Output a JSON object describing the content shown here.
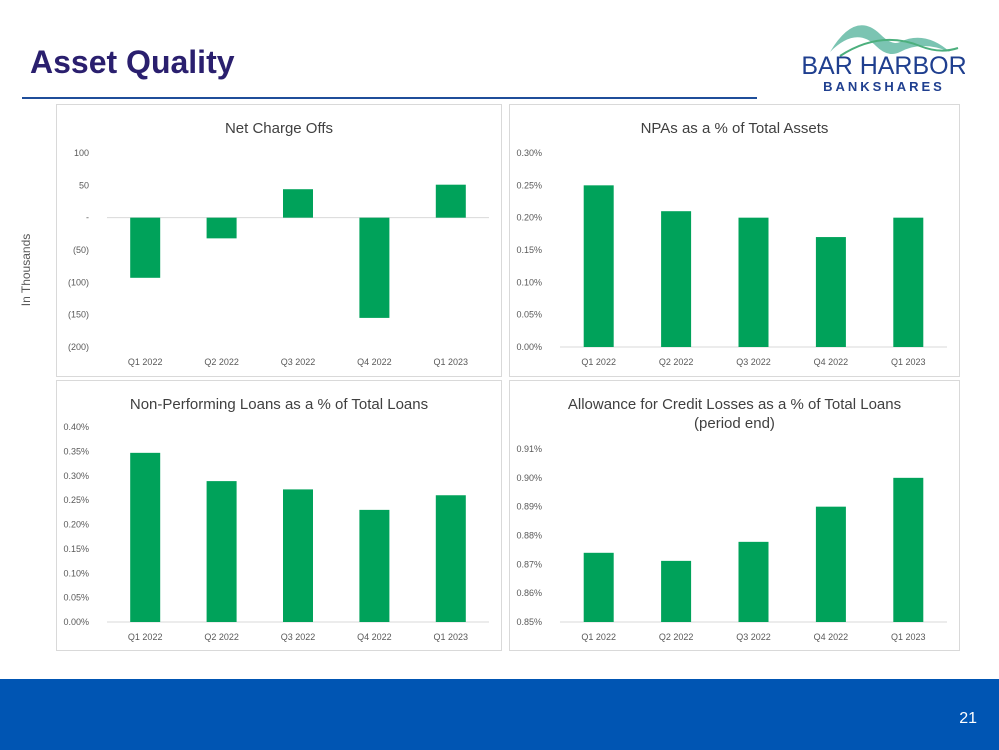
{
  "slide": {
    "title": "Asset Quality",
    "page_number": "21",
    "side_label": "In Thousands"
  },
  "logo": {
    "line1": "BAR HARBOR",
    "line2": "BANKSHARES"
  },
  "colors": {
    "bar": "#00a25a",
    "title": "#2a1f6e",
    "rule": "#1f4e9a",
    "footer": "#0055b3"
  },
  "chart_data": [
    {
      "type": "bar",
      "title": "Net Charge Offs",
      "categories": [
        "Q1 2022",
        "Q2 2022",
        "Q3 2022",
        "Q4 2022",
        "Q1 2023"
      ],
      "values": [
        -93,
        -32,
        44,
        -155,
        51
      ],
      "ylim": [
        -200,
        100
      ],
      "yticks": [
        -200,
        -150,
        -100,
        -50,
        0,
        50,
        100
      ],
      "ytick_labels": [
        "(200)",
        "(150)",
        "(100)",
        "(50)",
        "-",
        "50",
        "100"
      ],
      "ylabel": "In Thousands"
    },
    {
      "type": "bar",
      "title": "NPAs as a % of Total Assets",
      "categories": [
        "Q1 2022",
        "Q2 2022",
        "Q3 2022",
        "Q4 2022",
        "Q1 2023"
      ],
      "values": [
        0.25,
        0.21,
        0.2,
        0.17,
        0.2
      ],
      "ylim": [
        0,
        0.3
      ],
      "yticks": [
        0,
        0.05,
        0.1,
        0.15,
        0.2,
        0.25,
        0.3
      ],
      "ytick_labels": [
        "0.00%",
        "0.05%",
        "0.10%",
        "0.15%",
        "0.20%",
        "0.25%",
        "0.30%"
      ]
    },
    {
      "type": "bar",
      "title": "Non-Performing Loans as a % of Total Loans",
      "categories": [
        "Q1 2022",
        "Q2 2022",
        "Q3 2022",
        "Q4 2022",
        "Q1 2023"
      ],
      "values": [
        0.347,
        0.289,
        0.272,
        0.23,
        0.26
      ],
      "ylim": [
        0,
        0.4
      ],
      "yticks": [
        0,
        0.05,
        0.1,
        0.15,
        0.2,
        0.25,
        0.3,
        0.35,
        0.4
      ],
      "ytick_labels": [
        "0.00%",
        "0.05%",
        "0.10%",
        "0.15%",
        "0.20%",
        "0.25%",
        "0.30%",
        "0.35%",
        "0.40%"
      ]
    },
    {
      "type": "bar",
      "title": "Allowance for Credit Losses as a % of Total Loans",
      "subtitle": "(period end)",
      "categories": [
        "Q1 2022",
        "Q2 2022",
        "Q3 2022",
        "Q4 2022",
        "Q1 2023"
      ],
      "values": [
        0.874,
        0.8712,
        0.8778,
        0.89,
        0.9
      ],
      "ylim": [
        0.85,
        0.91
      ],
      "yticks": [
        0.85,
        0.86,
        0.87,
        0.88,
        0.89,
        0.9,
        0.91
      ],
      "ytick_labels": [
        "0.85%",
        "0.86%",
        "0.87%",
        "0.88%",
        "0.89%",
        "0.90%",
        "0.91%"
      ]
    }
  ]
}
